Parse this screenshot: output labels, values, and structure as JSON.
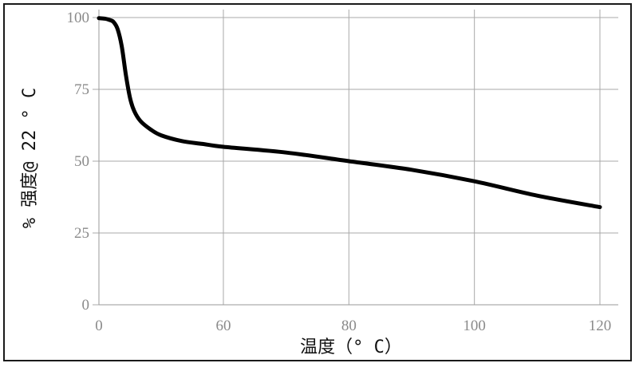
{
  "chart_data": {
    "type": "line",
    "title": "",
    "xlabel": "温度（° C）",
    "ylabel": "% 强度@ 22 ° C",
    "xlim": [
      0,
      120
    ],
    "ylim": [
      0,
      100
    ],
    "xticks": [
      0,
      60,
      80,
      100,
      120
    ],
    "yticks": [
      0,
      25,
      50,
      75,
      100
    ],
    "grid": true,
    "series": [
      {
        "color": "#000000",
        "x": [
          0,
          3,
          5,
          7,
          9,
          11,
          13,
          15,
          17,
          20,
          25,
          30,
          40,
          50,
          60,
          70,
          80,
          90,
          100,
          110,
          120
        ],
        "y": [
          99.8,
          99.6,
          99.2,
          98.5,
          96,
          90,
          80,
          72,
          67.5,
          64,
          61,
          59,
          57,
          56,
          55,
          53,
          50,
          47,
          43,
          38,
          34
        ]
      }
    ]
  }
}
